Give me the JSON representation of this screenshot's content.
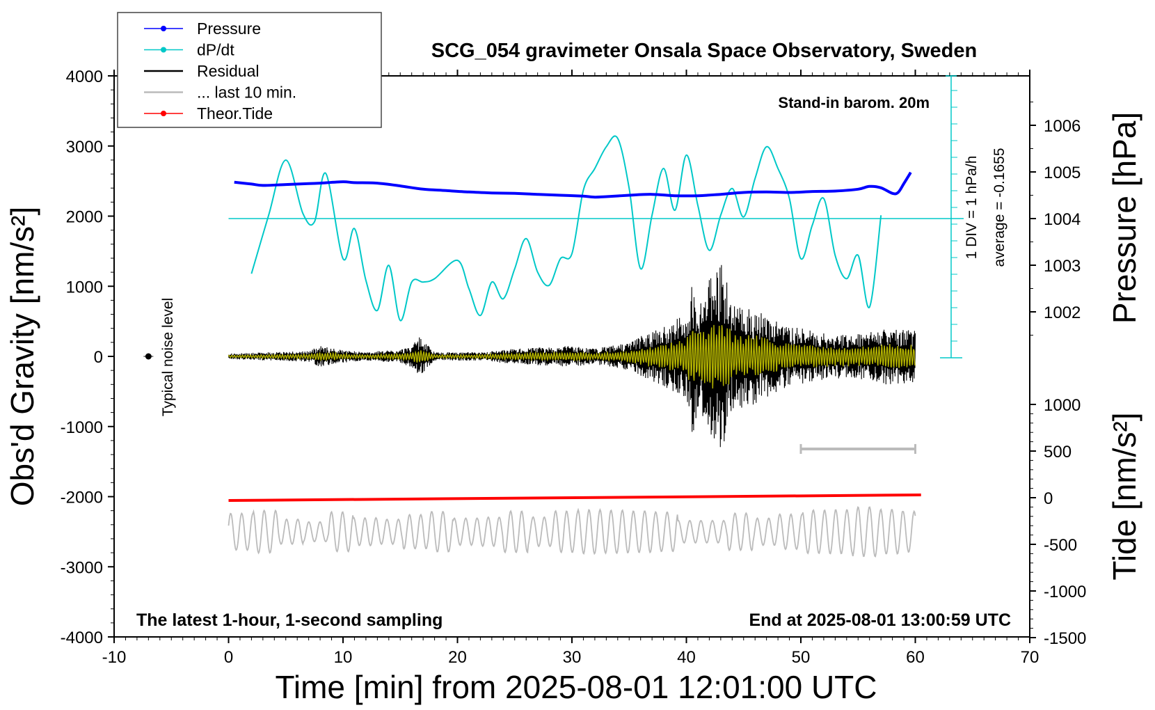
{
  "chart_data": {
    "type": "line",
    "title": "SCG_054 gravimeter Onsala Space Observatory, Sweden",
    "xlabel": "Time [min] from 2025-08-01 12:01:00 UTC",
    "ylabel_left": "Obs'd Gravity [nm/s²]",
    "ylabel_right_top": "Pressure [hPa]",
    "ylabel_right_bottom": "Tide [nm/s²]",
    "xlim": [
      -10,
      70
    ],
    "ylim": [
      -4000,
      4000
    ],
    "xticks": [
      "-10",
      "0",
      "10",
      "20",
      "30",
      "40",
      "50",
      "60",
      "70"
    ],
    "yticks_left": [
      "4000",
      "3000",
      "2000",
      "1000",
      "0",
      "-1000",
      "-2000",
      "-3000",
      "-4000"
    ],
    "pressure_axis": {
      "ticks": [
        "1006",
        "1005",
        "1004",
        "1003",
        "1002"
      ],
      "values": [
        1006,
        1005,
        1004,
        1003,
        1002
      ]
    },
    "tide_axis": {
      "ticks": [
        "1000",
        "500",
        "0",
        "-500",
        "-1000",
        "-1500"
      ],
      "values": [
        1000,
        500,
        0,
        -500,
        -1000,
        -1500
      ]
    },
    "legend": {
      "placement": "top-left",
      "entries": [
        {
          "name": "Pressure",
          "color": "#0000ff",
          "marker": true
        },
        {
          "name": "dP/dt",
          "color": "#00c8c8",
          "marker": true
        },
        {
          "name": "Residual",
          "color": "#000000",
          "marker": false
        },
        {
          "name": "... last 10 min.",
          "color": "#bbbbbb",
          "marker": false
        },
        {
          "name": "Theor.Tide",
          "color": "#ff0000",
          "marker": true
        }
      ]
    },
    "annotations": {
      "stand_in": "Stand-in barom. 20m",
      "div_label": "1 DIV = 1 hPa/h",
      "average_label": "average = -0.1655",
      "noise_label": "Typical noise level",
      "bottom_left": "The latest 1-hour, 1-second sampling",
      "bottom_right": "End at 2025-08-01 13:00:59 UTC"
    },
    "series": [
      {
        "name": "Pressure",
        "unit": "hPa",
        "color": "#0000ff",
        "x": [
          0.5,
          2,
          3,
          5,
          7,
          8,
          10,
          11,
          13,
          15,
          17,
          19,
          21,
          23,
          25,
          27,
          29,
          31,
          32,
          33,
          35,
          37,
          39,
          41,
          43,
          45,
          47,
          49,
          51,
          53,
          55,
          56,
          57,
          58,
          58.5,
          59,
          59.6
        ],
        "values": [
          1004.78,
          1004.74,
          1004.71,
          1004.73,
          1004.75,
          1004.76,
          1004.79,
          1004.77,
          1004.76,
          1004.7,
          1004.63,
          1004.6,
          1004.57,
          1004.55,
          1004.54,
          1004.52,
          1004.5,
          1004.48,
          1004.46,
          1004.47,
          1004.5,
          1004.52,
          1004.49,
          1004.49,
          1004.52,
          1004.56,
          1004.57,
          1004.56,
          1004.58,
          1004.59,
          1004.63,
          1004.69,
          1004.66,
          1004.54,
          1004.56,
          1004.75,
          1004.99
        ]
      },
      {
        "name": "dP/dt",
        "unit": "hPa/h",
        "color": "#00c8c8",
        "x": [
          2,
          3.5,
          5,
          6.5,
          7.5,
          8.5,
          10,
          11,
          12,
          13,
          14,
          15,
          16,
          17,
          18,
          20,
          21,
          22,
          23,
          24,
          25,
          26,
          27,
          28,
          29,
          30,
          31,
          32,
          33,
          34,
          35,
          36,
          37,
          38,
          39,
          40,
          41,
          42,
          43,
          44,
          45,
          46,
          47,
          48,
          49,
          50,
          51,
          52,
          53,
          54,
          55,
          56,
          57
        ],
        "values": [
          -3.3,
          0.2,
          3.5,
          0.3,
          -0.2,
          2.7,
          -2.4,
          -0.6,
          -3.7,
          -5.5,
          -2.8,
          -6.1,
          -3.8,
          -3.8,
          -3.6,
          -2.5,
          -4.2,
          -5.8,
          -3.8,
          -4.8,
          -3.0,
          -1.2,
          -3.2,
          -4.0,
          -2.4,
          -2.1,
          1.7,
          3.0,
          4.3,
          4.8,
          1.8,
          -3.0,
          0.2,
          3.0,
          0.5,
          3.8,
          0.8,
          -1.9,
          0.2,
          1.8,
          0.1,
          2.4,
          4.3,
          3.0,
          1.2,
          -2.4,
          -0.4,
          1.2,
          -2.2,
          -3.6,
          -2.2,
          -5.3,
          0.2
        ]
      },
      {
        "name": "Residual",
        "unit": "nm/s²",
        "color": "#000000",
        "x_range": [
          0,
          60
        ],
        "envelope": {
          "x": [
            0,
            7,
            8,
            10,
            12,
            15,
            16,
            16.7,
            18,
            22,
            25,
            30,
            32,
            35,
            36.5,
            38,
            39,
            40,
            40.5,
            41,
            42,
            43,
            43.3,
            44,
            45,
            47,
            49,
            51,
            52,
            55,
            58,
            60
          ],
          "values": [
            40,
            80,
            150,
            90,
            60,
            100,
            150,
            280,
            60,
            60,
            110,
            150,
            110,
            200,
            330,
            420,
            520,
            600,
            1150,
            800,
            1100,
            1350,
            1250,
            800,
            750,
            600,
            420,
            380,
            330,
            320,
            420,
            380
          ]
        }
      },
      {
        "name": "... last 10 min.",
        "unit": "nm/s²",
        "color": "#bbbbbb",
        "offset": -2500,
        "amplitude_range": [
          150,
          350
        ]
      },
      {
        "name": "Theor.Tide",
        "unit": "nm/s²",
        "color": "#ff0000",
        "x": [
          0,
          60.5
        ],
        "values": [
          -30,
          30
        ]
      }
    ],
    "colors": {
      "axis": "#000000",
      "pressure": "#0000ff",
      "dpdt": "#00c8c8",
      "residual": "#000000",
      "filtered": "#c8c800",
      "last10": "#bbbbbb",
      "tide": "#ff0000"
    }
  }
}
